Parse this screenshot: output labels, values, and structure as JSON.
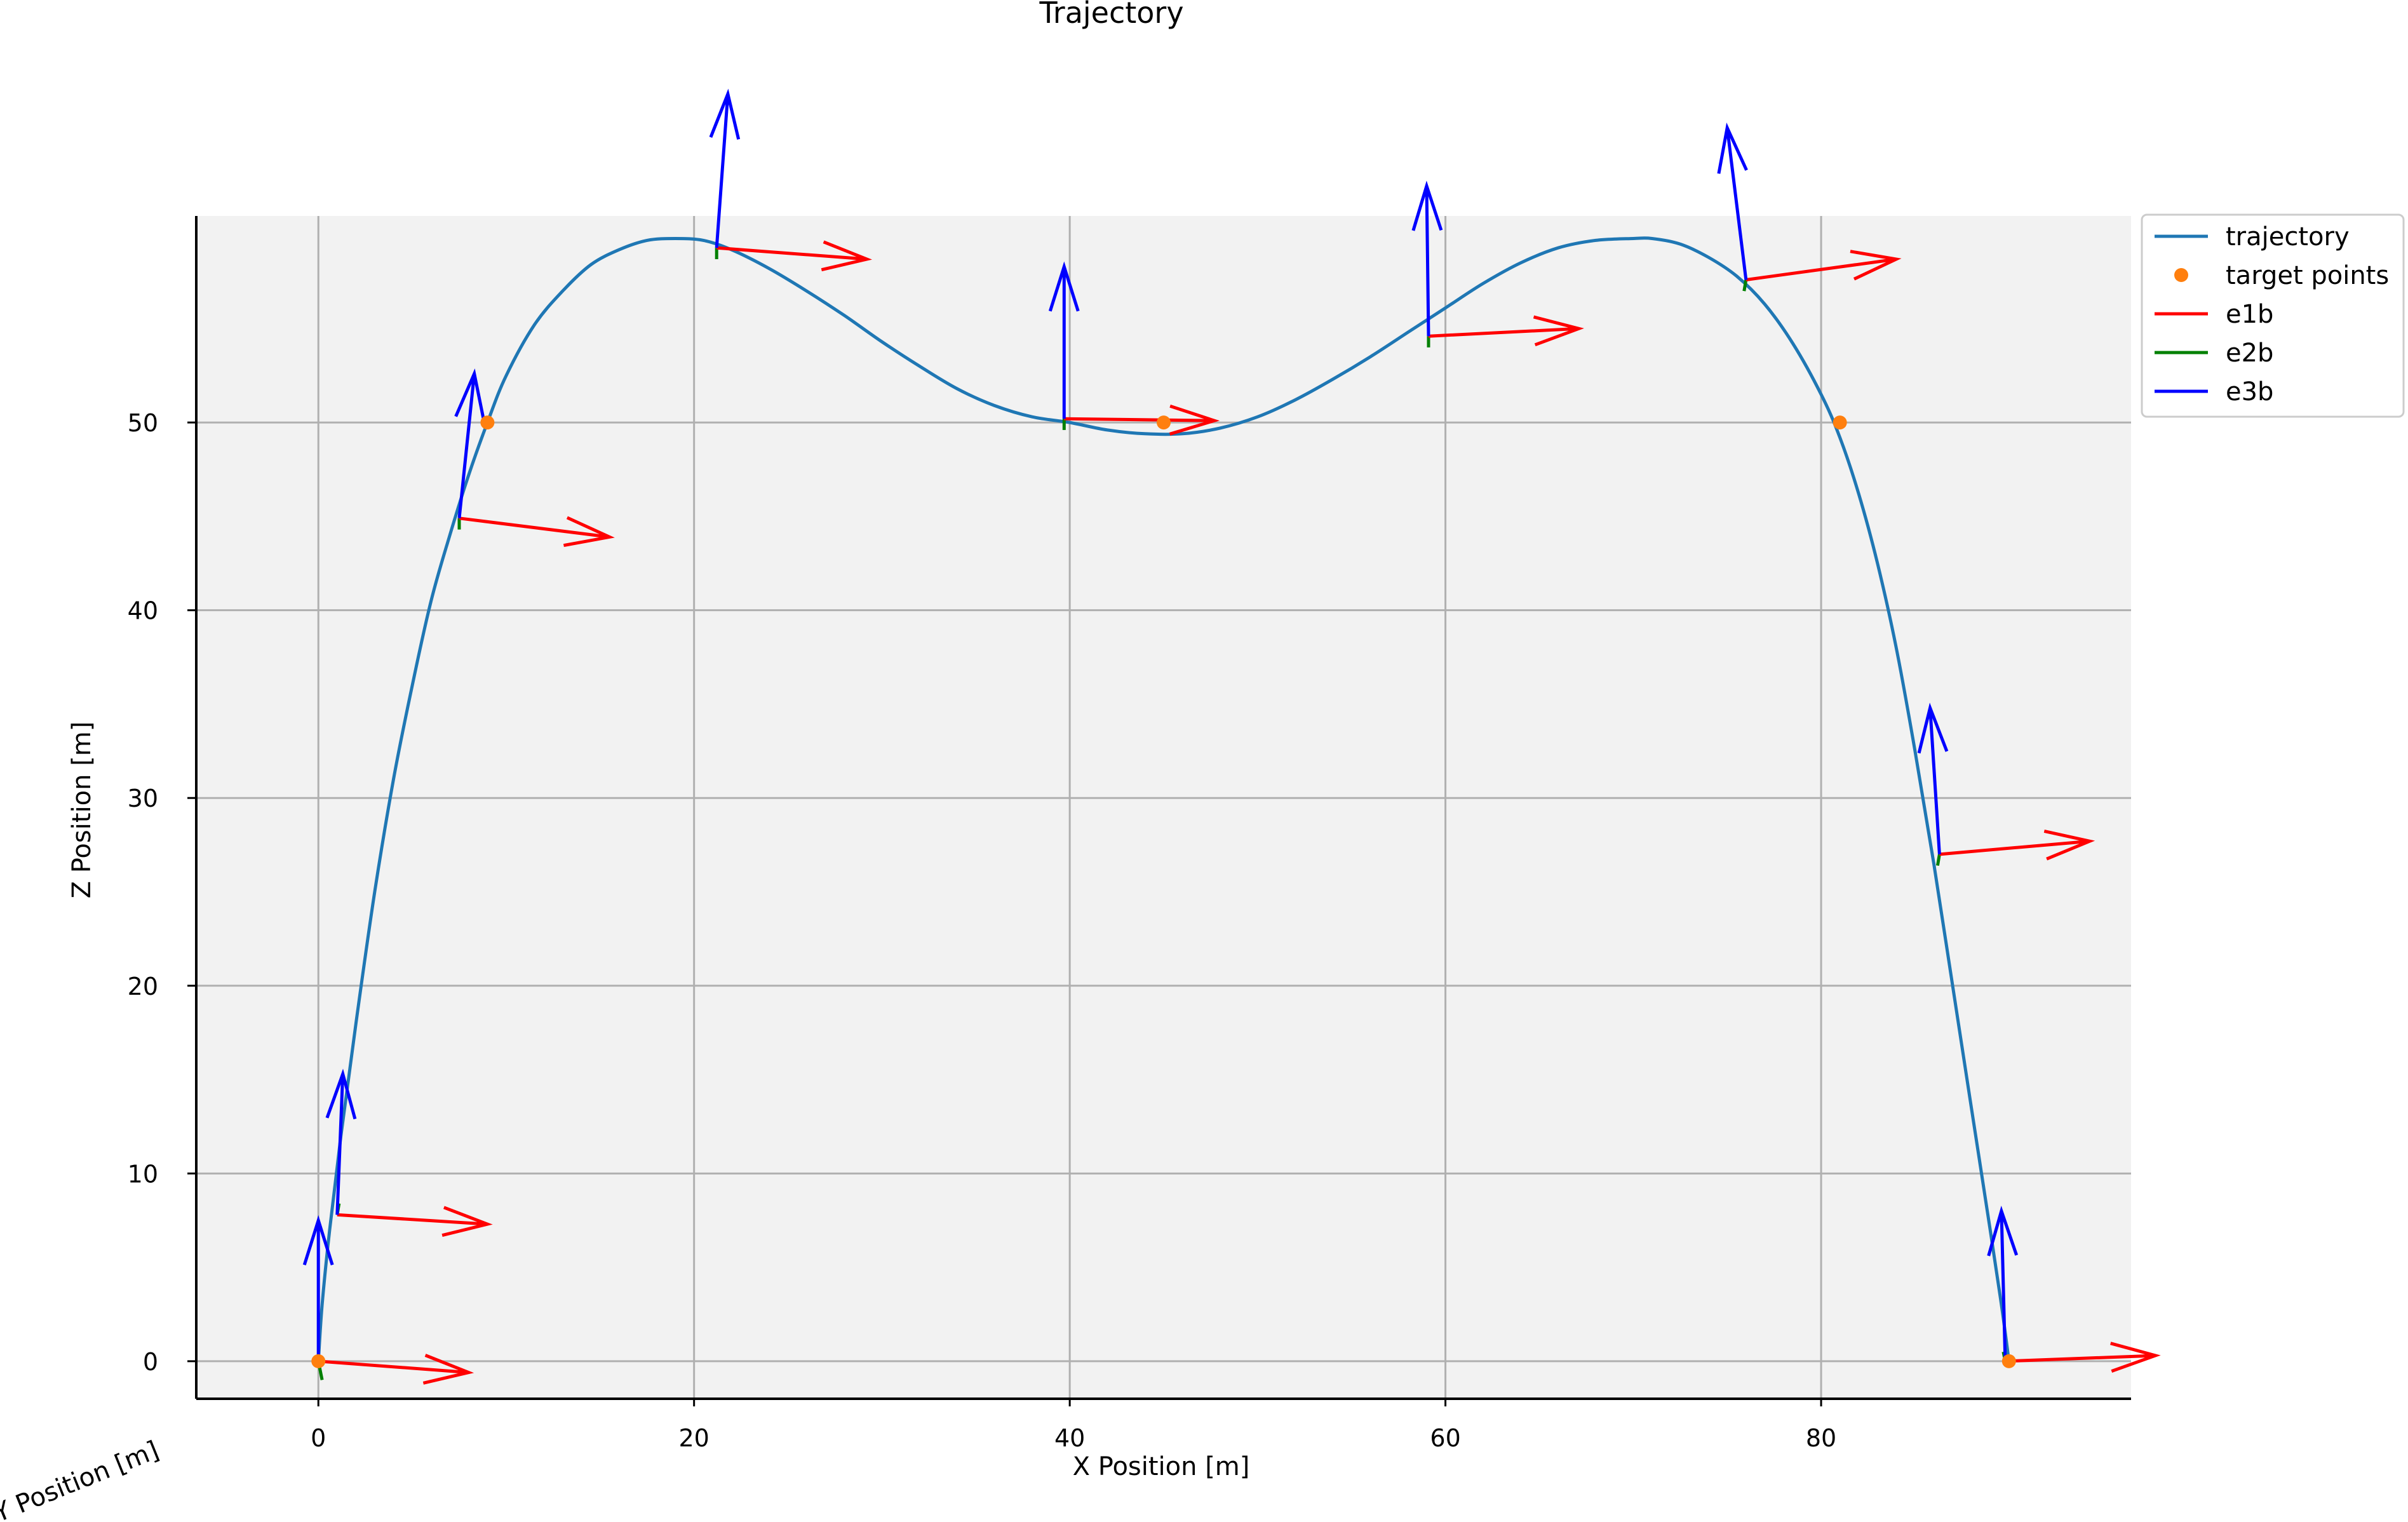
{
  "chart_data": {
    "type": "line",
    "title": "Trajectory",
    "xlabel": "X Position [m]",
    "ylabel": "Y Position [m]",
    "zlabel": "Z Position [m]",
    "xlim": [
      -6.5,
      96.5
    ],
    "ylim": [
      -2,
      61
    ],
    "x_ticks": [
      0,
      20,
      40,
      60,
      80
    ],
    "z_ticks": [
      0,
      10,
      20,
      30,
      40,
      50
    ],
    "grid": true,
    "legend_position": "outside top-right",
    "colors": {
      "trajectory": "#1f77b4",
      "target_points": "#ff7f0e",
      "e1b": "#ff0000",
      "e2b": "#008000",
      "e3b": "#0000ff",
      "plot_background": "#f2f2f2",
      "grid": "#b0b0b0"
    },
    "legend": [
      {
        "label": "trajectory",
        "kind": "line",
        "color": "#1f77b4"
      },
      {
        "label": "target points",
        "kind": "marker",
        "color": "#ff7f0e"
      },
      {
        "label": "e1b",
        "kind": "line",
        "color": "#ff0000"
      },
      {
        "label": "e2b",
        "kind": "line",
        "color": "#008000"
      },
      {
        "label": "e3b",
        "kind": "line",
        "color": "#0000ff"
      }
    ],
    "series": [
      {
        "name": "trajectory",
        "x": [
          0,
          0.2,
          0.6,
          1.2,
          2.0,
          3.0,
          4.0,
          5.0,
          6.0,
          7.0,
          8.0,
          9.0,
          10.0,
          11.5,
          13.0,
          14.5,
          16.0,
          17.5,
          19.0,
          20.5,
          22.0,
          24.0,
          26.0,
          28.0,
          30.0,
          32.0,
          34.0,
          36.0,
          38.0,
          40.0,
          42.0,
          44.0,
          46.0,
          48.0,
          50.0,
          52.0,
          54.0,
          56.0,
          58.0,
          60.0,
          62.0,
          64.0,
          66.0,
          68.0,
          70.0,
          71.0,
          72.5,
          74.0,
          75.5,
          77.0,
          78.5,
          80.0,
          81.0,
          82.0,
          83.0,
          84.0,
          85.0,
          86.0,
          87.0,
          88.0,
          89.0,
          89.6,
          90.0
        ],
        "z": [
          0,
          3,
          7,
          12,
          18,
          25,
          31,
          36,
          40.5,
          44.0,
          47.2,
          50.0,
          52.5,
          55.2,
          57.0,
          58.4,
          59.2,
          59.7,
          59.8,
          59.7,
          59.2,
          58.2,
          57.0,
          55.7,
          54.3,
          53.0,
          51.8,
          50.9,
          50.3,
          50.0,
          49.6,
          49.4,
          49.4,
          49.7,
          50.3,
          51.2,
          52.3,
          53.5,
          54.8,
          56.1,
          57.4,
          58.5,
          59.3,
          59.7,
          59.8,
          59.8,
          59.5,
          58.8,
          57.8,
          56.3,
          54.2,
          51.5,
          49.2,
          46.2,
          42.5,
          38.0,
          32.5,
          26.5,
          20.0,
          13.5,
          7.0,
          3.0,
          0
        ]
      }
    ],
    "target_points": [
      {
        "x": 0,
        "z": 0
      },
      {
        "x": 9,
        "z": 50
      },
      {
        "x": 45,
        "z": 50
      },
      {
        "x": 81,
        "z": 50
      },
      {
        "x": 90,
        "z": 0
      }
    ],
    "body_frames": [
      {
        "origin": [
          0.0,
          0.0
        ],
        "e1b": [
          8.0,
          -0.6
        ],
        "e2b": [
          0.2,
          -1.0
        ],
        "e3b": [
          0.0,
          7.5
        ]
      },
      {
        "origin": [
          1.0,
          7.8
        ],
        "e1b": [
          8.0,
          -0.5
        ],
        "e2b": [
          0.1,
          0.6
        ],
        "e3b": [
          0.3,
          7.5
        ]
      },
      {
        "origin": [
          7.5,
          44.9
        ],
        "e1b": [
          8.0,
          -1.0
        ],
        "e2b": [
          0.0,
          -0.6
        ],
        "e3b": [
          0.8,
          7.7
        ]
      },
      {
        "origin": [
          21.2,
          59.3
        ],
        "e1b": [
          8.0,
          -0.6
        ],
        "e2b": [
          0.0,
          -0.6
        ],
        "e3b": [
          0.6,
          8.2
        ]
      },
      {
        "origin": [
          39.7,
          50.2
        ],
        "e1b": [
          8.0,
          -0.1
        ],
        "e2b": [
          0.0,
          -0.6
        ],
        "e3b": [
          0.0,
          8.1
        ]
      },
      {
        "origin": [
          59.1,
          54.6
        ],
        "e1b": [
          8.0,
          0.4
        ],
        "e2b": [
          0.0,
          -0.6
        ],
        "e3b": [
          -0.1,
          8.0
        ]
      },
      {
        "origin": [
          76.0,
          57.6
        ],
        "e1b": [
          8.0,
          1.1
        ],
        "e2b": [
          -0.1,
          -0.6
        ],
        "e3b": [
          -1.0,
          8.1
        ]
      },
      {
        "origin": [
          86.3,
          27.0
        ],
        "e1b": [
          8.0,
          0.7
        ],
        "e2b": [
          -0.1,
          -0.6
        ],
        "e3b": [
          -0.5,
          7.8
        ]
      },
      {
        "origin": [
          89.8,
          0.0
        ],
        "e1b": [
          8.0,
          0.3
        ],
        "e2b": [
          -0.1,
          0.5
        ],
        "e3b": [
          -0.2,
          8.0
        ]
      }
    ]
  }
}
